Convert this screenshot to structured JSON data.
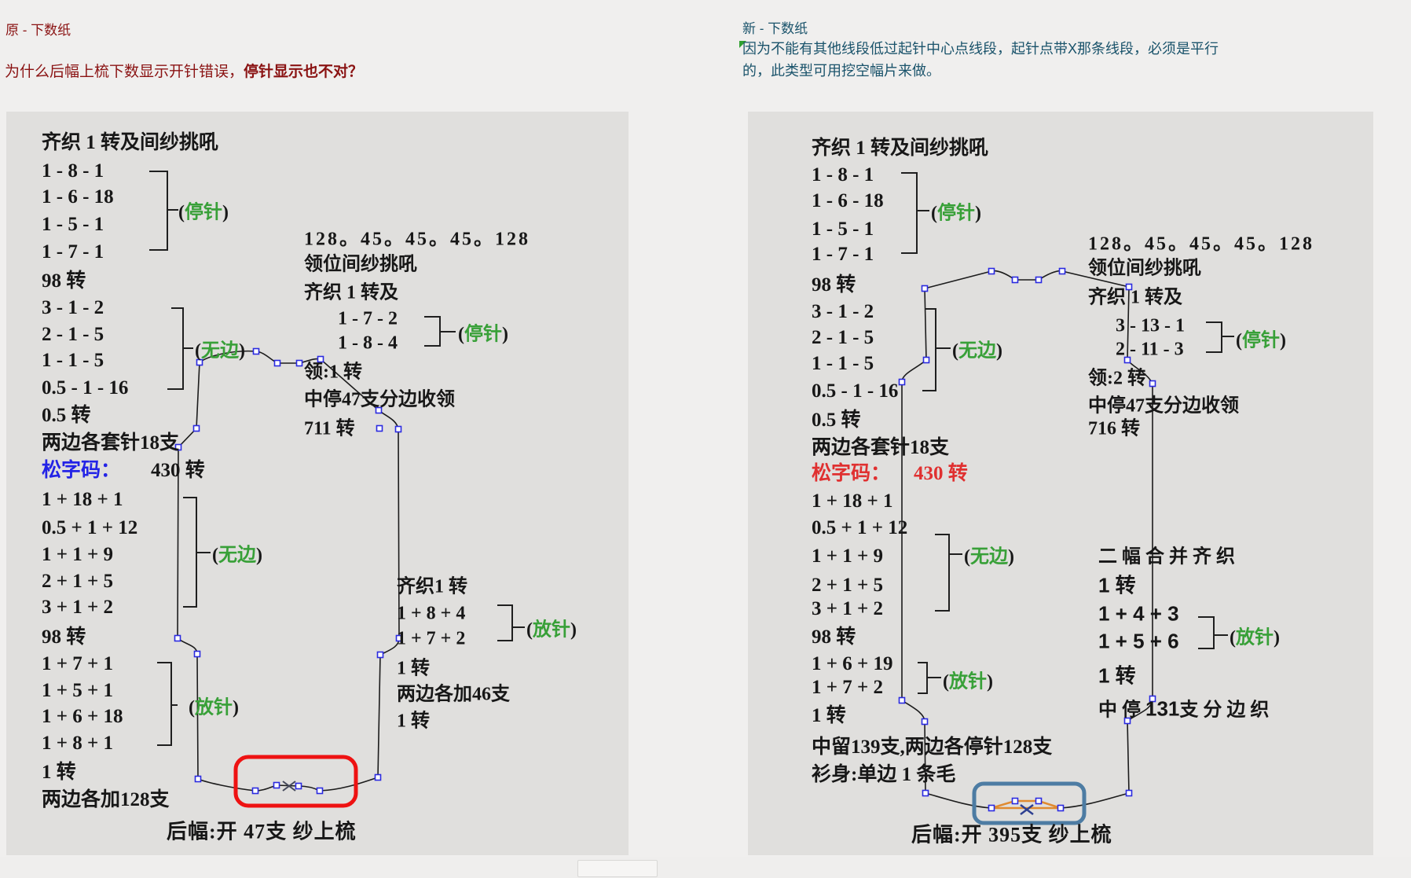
{
  "punct": {
    "open": "(",
    "close": ")"
  },
  "header_left": {
    "title": "原 - 下数纸",
    "question_prefix": "为什么后幅上梳下数显示开针错误，",
    "question_bold": "停针显示也不对？"
  },
  "header_right": {
    "title": "新 - 下数纸",
    "note": "因为不能有其他线段低过起针中心点线段，起针点带X那条线段，必须是平行的，此类型可用挖空幅片来做。"
  },
  "left_panel": {
    "col1": [
      "齐织 1 转及间纱挑吼",
      "1 - 8 - 1",
      "1 - 6 - 18",
      "1 - 5 - 1",
      "1 - 7 - 1",
      "98 转",
      "3 - 1 - 2",
      "2 - 1 - 5",
      "1 - 1 - 5",
      "0.5 - 1 - 16",
      "0.5 转",
      "两边各套针18支"
    ],
    "loose_label": "松字码：",
    "loose_value": "430 转",
    "col1b": [
      "1 + 18 + 1",
      "0.5 + 1 + 12",
      "1 + 1 + 9",
      "2 + 1 + 5",
      "3 + 1 + 2",
      "98 转",
      "1 + 7 + 1",
      "1 + 5 + 1",
      "1 + 6 + 18",
      "1 + 8 + 1",
      "1 转",
      "两边各加128支"
    ],
    "col2": [
      "128。45。45。45。128",
      "领位间纱挑吼",
      "齐织 1 转及",
      "1 - 7 - 2",
      "1 - 8 - 4",
      "领:1 转",
      "中停47支分边收领",
      "711 转"
    ],
    "col2b": [
      "齐织1 转",
      "1 + 8 + 4",
      "1 + 7 + 2",
      "1 转",
      "两边各加46支",
      "1 转"
    ],
    "labels": {
      "stop1": "停针",
      "noedge1": "无边",
      "noedge2": "无边",
      "add1": "放针",
      "stop2": "停针",
      "add2": "放针"
    },
    "bottom": "后幅:开 47支 纱上梳"
  },
  "right_panel": {
    "col1": [
      "齐织 1 转及间纱挑吼",
      "1 - 8 - 1",
      "1 - 6 - 18",
      "1 - 5 - 1",
      "1 - 7 - 1",
      "98 转",
      "3 - 1 - 2",
      "2 - 1 - 5",
      "1 - 1 - 5",
      "0.5 - 1 - 16",
      "0.5 转",
      "两边各套针18支"
    ],
    "loose_label": "松字码：",
    "loose_value": "430 转",
    "col1b": [
      "1 + 18 + 1",
      "0.5 + 1 + 12",
      "1 + 1 + 9",
      "2 + 1 + 5",
      "3 + 1 + 2",
      "98 转",
      "1 + 6 + 19",
      "1 + 7 + 2",
      "1 转",
      "中留139支,两边各停针128支",
      "衫身:单边 1 条毛"
    ],
    "col2": [
      "128。45。45。45。128",
      "领位间纱挑吼",
      "齐织 1 转及",
      "3 - 13 - 1",
      "2 - 11 - 3",
      "领:2 转",
      "中停47支分边收领",
      "716 转"
    ],
    "col2b": [
      "二 幅 合 并 齐 织",
      "1 转",
      "1 + 4 + 3",
      "1 + 5 + 6",
      "1 转"
    ],
    "split_line": {
      "pre": "中 停 ",
      "num": "131",
      "post": "支 分 边 织"
    },
    "labels": {
      "stop1": "停针",
      "noedge1": "无边",
      "noedge2": "无边",
      "add1": "放针",
      "stop2": "停针",
      "add2": "放针"
    },
    "bottom": "后幅:开 395支 纱上梳"
  },
  "colors": {
    "accent_red": "#8a1212",
    "accent_teal": "#1a536b",
    "green_label": "#38a038",
    "loose_blue": "#2323e6",
    "loose_red": "#e03030",
    "error_box": "#ee1212",
    "info_box": "#4d7ca3",
    "orange_segment": "#e08a30",
    "handle_blue": "#2a2ae0"
  }
}
